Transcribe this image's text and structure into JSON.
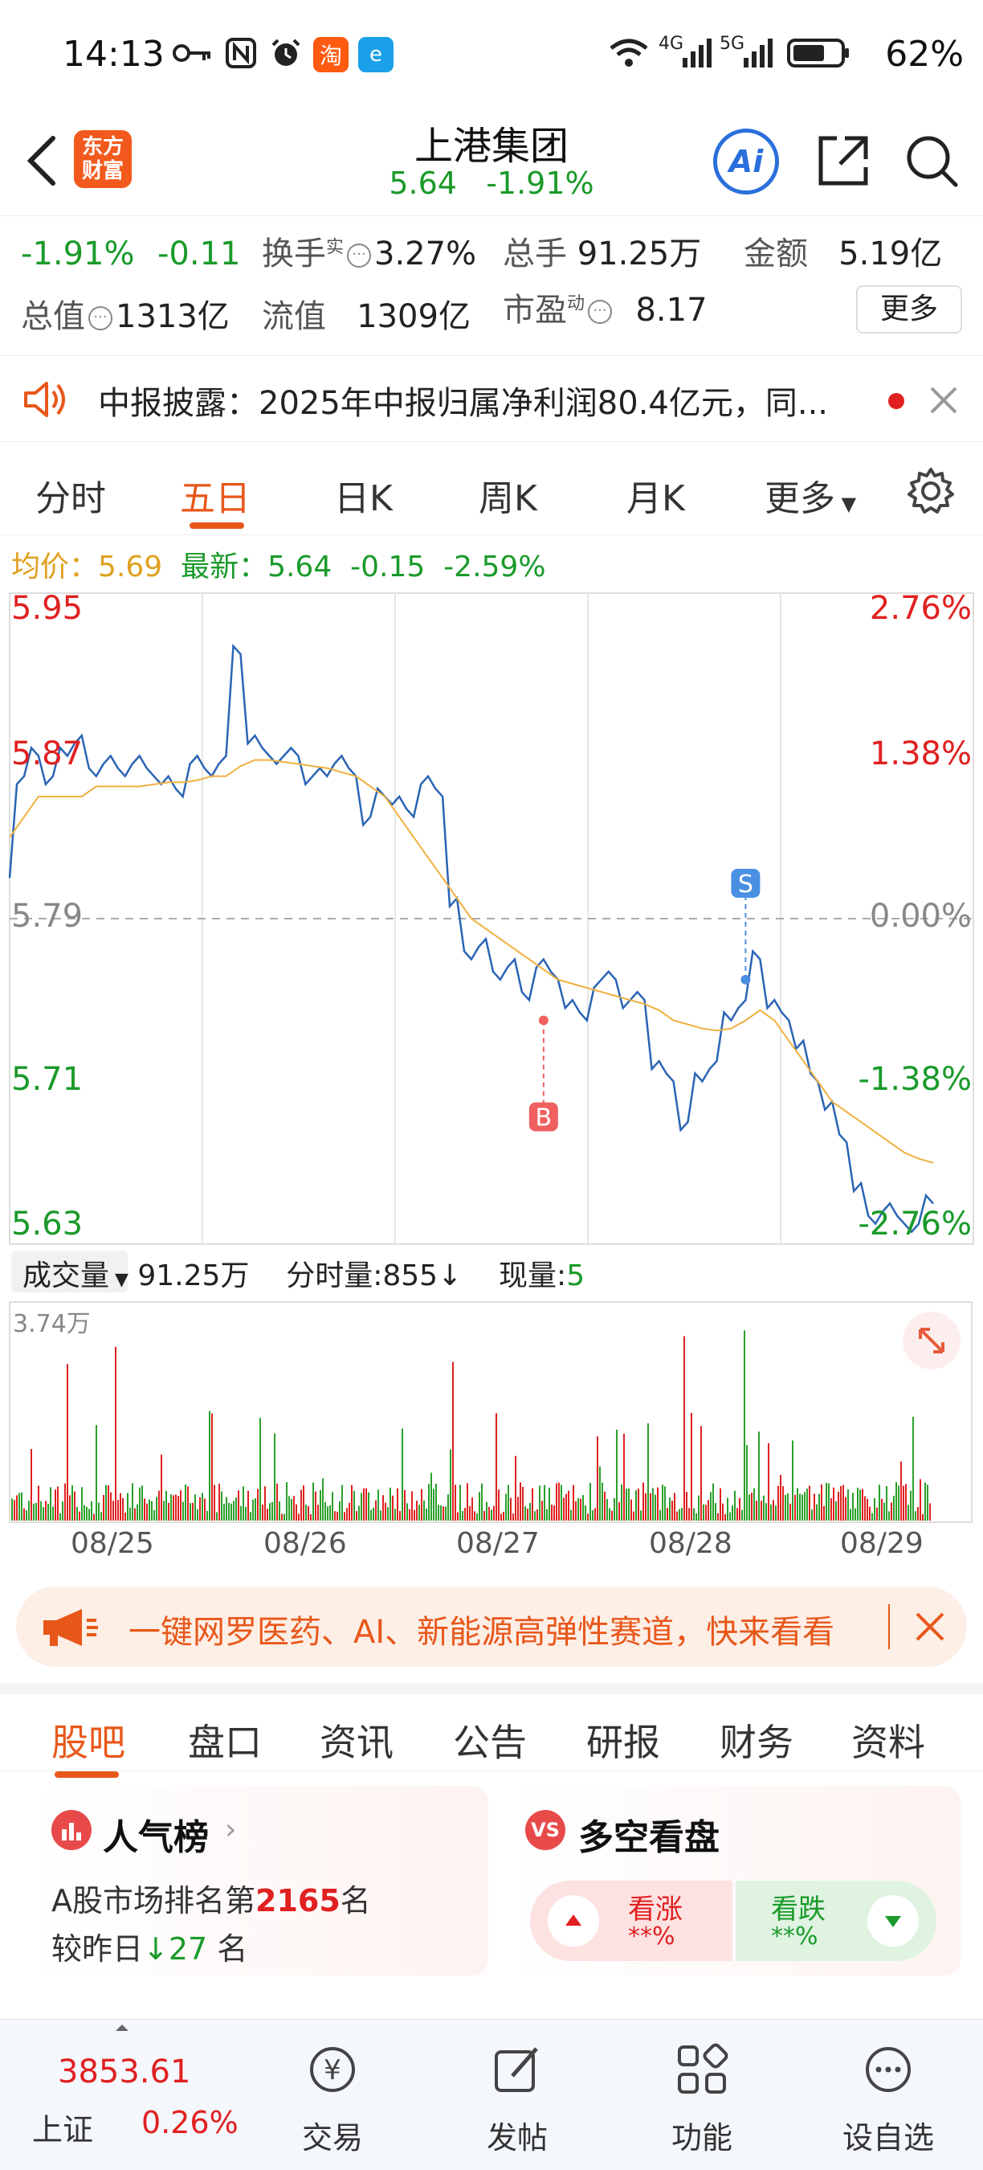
{
  "status_bar": {
    "time": "14:13",
    "network_4g": "4G",
    "network_5g": "5G",
    "battery": "62%",
    "icons": [
      "key-icon",
      "nfc-icon",
      "alarm-icon",
      "taobao-icon",
      "app-icon",
      "wifi-icon",
      "signal-icon",
      "battery-icon"
    ]
  },
  "header": {
    "logo_text_line1": "东方",
    "logo_text_line2": "财富",
    "title": "上港集团",
    "price": "5.64",
    "change_pct": "-1.91%",
    "ai_label": "Ai"
  },
  "quote": {
    "change_pct": "-1.91%",
    "change": "-0.11",
    "turnover_label": "换手",
    "turnover_sup": "实",
    "turnover_value": "3.27%",
    "volume_label": "总手",
    "volume_value": "91.25万",
    "amount_label": "金额",
    "amount_value": "5.19亿",
    "market_cap_label": "总值",
    "market_cap_value": "1313亿",
    "float_cap_label": "流值",
    "float_cap_value": "1309亿",
    "pe_label": "市盈",
    "pe_sup": "动",
    "pe_value": "8.17",
    "more_label": "更多"
  },
  "announcement": {
    "text": "中报披露：2025年中报归属净利润80.4亿元，同..."
  },
  "chart_tabs": {
    "items": [
      "分时",
      "五日",
      "日K",
      "周K",
      "月K",
      "更多"
    ],
    "active_index": 1
  },
  "price_line": {
    "avg_label": "均价：",
    "avg_value": "5.69",
    "latest_label": "最新：",
    "latest_value": "5.64",
    "latest_change": "-0.15",
    "latest_change_pct": "-2.59%"
  },
  "chart_data": {
    "type": "line",
    "title": "",
    "xlabel": "",
    "ylabel": "",
    "ylim": [
      5.63,
      5.95
    ],
    "y_ticks_left": [
      "5.95",
      "5.87",
      "5.79",
      "5.71",
      "5.63"
    ],
    "y_ticks_right": [
      "2.76%",
      "1.38%",
      "0.00%",
      "-1.38%",
      "-2.76%"
    ],
    "reference_price": 5.79,
    "x_tick_labels": [
      "08/25",
      "08/26",
      "08/27",
      "08/28",
      "08/29"
    ],
    "series": [
      {
        "name": "",
        "color": "#2a64b4",
        "values": [
          5.81,
          5.86,
          5.87,
          5.86,
          5.87,
          5.88,
          5.86,
          5.87,
          5.86,
          5.87,
          5.86,
          5.86,
          5.85,
          5.87,
          5.86,
          5.87,
          5.92,
          5.88,
          5.87,
          5.87,
          5.87,
          5.86,
          5.86,
          5.87,
          5.86,
          5.84,
          5.85,
          5.85,
          5.84,
          5.86,
          5.85,
          5.8,
          5.77,
          5.78,
          5.76,
          5.77,
          5.75,
          5.77,
          5.76,
          5.75,
          5.74,
          5.76,
          5.76,
          5.75,
          5.75,
          5.72,
          5.71,
          5.69,
          5.71,
          5.72,
          5.74,
          5.75,
          5.77,
          5.75,
          5.74,
          5.73,
          5.71,
          5.7,
          5.68,
          5.66,
          5.64,
          5.65,
          5.64,
          5.64,
          5.65
        ]
      },
      {
        "name": "",
        "color": "#f0b040",
        "values": [
          5.83,
          5.84,
          5.85,
          5.85,
          5.85,
          5.85,
          5.855,
          5.855,
          5.855,
          5.855,
          5.856,
          5.857,
          5.857,
          5.858,
          5.86,
          5.86,
          5.865,
          5.868,
          5.868,
          5.867,
          5.866,
          5.865,
          5.864,
          5.862,
          5.86,
          5.855,
          5.85,
          5.84,
          5.83,
          5.82,
          5.81,
          5.8,
          5.79,
          5.785,
          5.78,
          5.775,
          5.77,
          5.765,
          5.76,
          5.758,
          5.756,
          5.754,
          5.752,
          5.75,
          5.748,
          5.745,
          5.74,
          5.738,
          5.736,
          5.735,
          5.736,
          5.74,
          5.745,
          5.74,
          5.73,
          5.72,
          5.71,
          5.7,
          5.695,
          5.69,
          5.685,
          5.68,
          5.675,
          5.672,
          5.67
        ]
      }
    ],
    "markers": [
      {
        "label": "B",
        "x_index": 37,
        "value": 5.74,
        "color": "#f06060"
      },
      {
        "label": "S",
        "x_index": 51,
        "value": 5.76,
        "color": "#4a90e2"
      }
    ],
    "grid": true
  },
  "volume": {
    "selector_label": "成交量",
    "total": "91.25万",
    "tick_label": "分时量:",
    "tick_value": "855",
    "tick_arrow": "↓",
    "current_label": "现量:",
    "current_value": "5",
    "max_label": "3.74万",
    "dates": [
      "08/25",
      "08/26",
      "08/27",
      "08/28",
      "08/29"
    ]
  },
  "promo": {
    "text": "一键网罗医药、AI、新能源高弹性赛道，快来看看"
  },
  "content_tabs": {
    "items": [
      "股吧",
      "盘口",
      "资讯",
      "公告",
      "研报",
      "财务",
      "资料"
    ],
    "active_index": 0
  },
  "popularity": {
    "title": "人气榜",
    "rank_prefix": "A股市场排名第",
    "rank_value": "2165",
    "rank_suffix": "名",
    "change_prefix": "较昨日",
    "change_value": "27",
    "change_suffix": "名"
  },
  "bull_bear": {
    "title": "多空看盘",
    "bull_label": "看涨",
    "bull_value": "**%",
    "bear_label": "看跌",
    "bear_value": "**%"
  },
  "index_bar": {
    "value": "3853.61",
    "name": "上证",
    "change_pct": "0.26%"
  },
  "bottom_nav": {
    "items": [
      {
        "label": "交易",
        "icon": "trade-icon"
      },
      {
        "label": "发帖",
        "icon": "post-icon"
      },
      {
        "label": "功能",
        "icon": "apps-icon"
      },
      {
        "label": "设自选",
        "icon": "more-icon"
      }
    ]
  }
}
